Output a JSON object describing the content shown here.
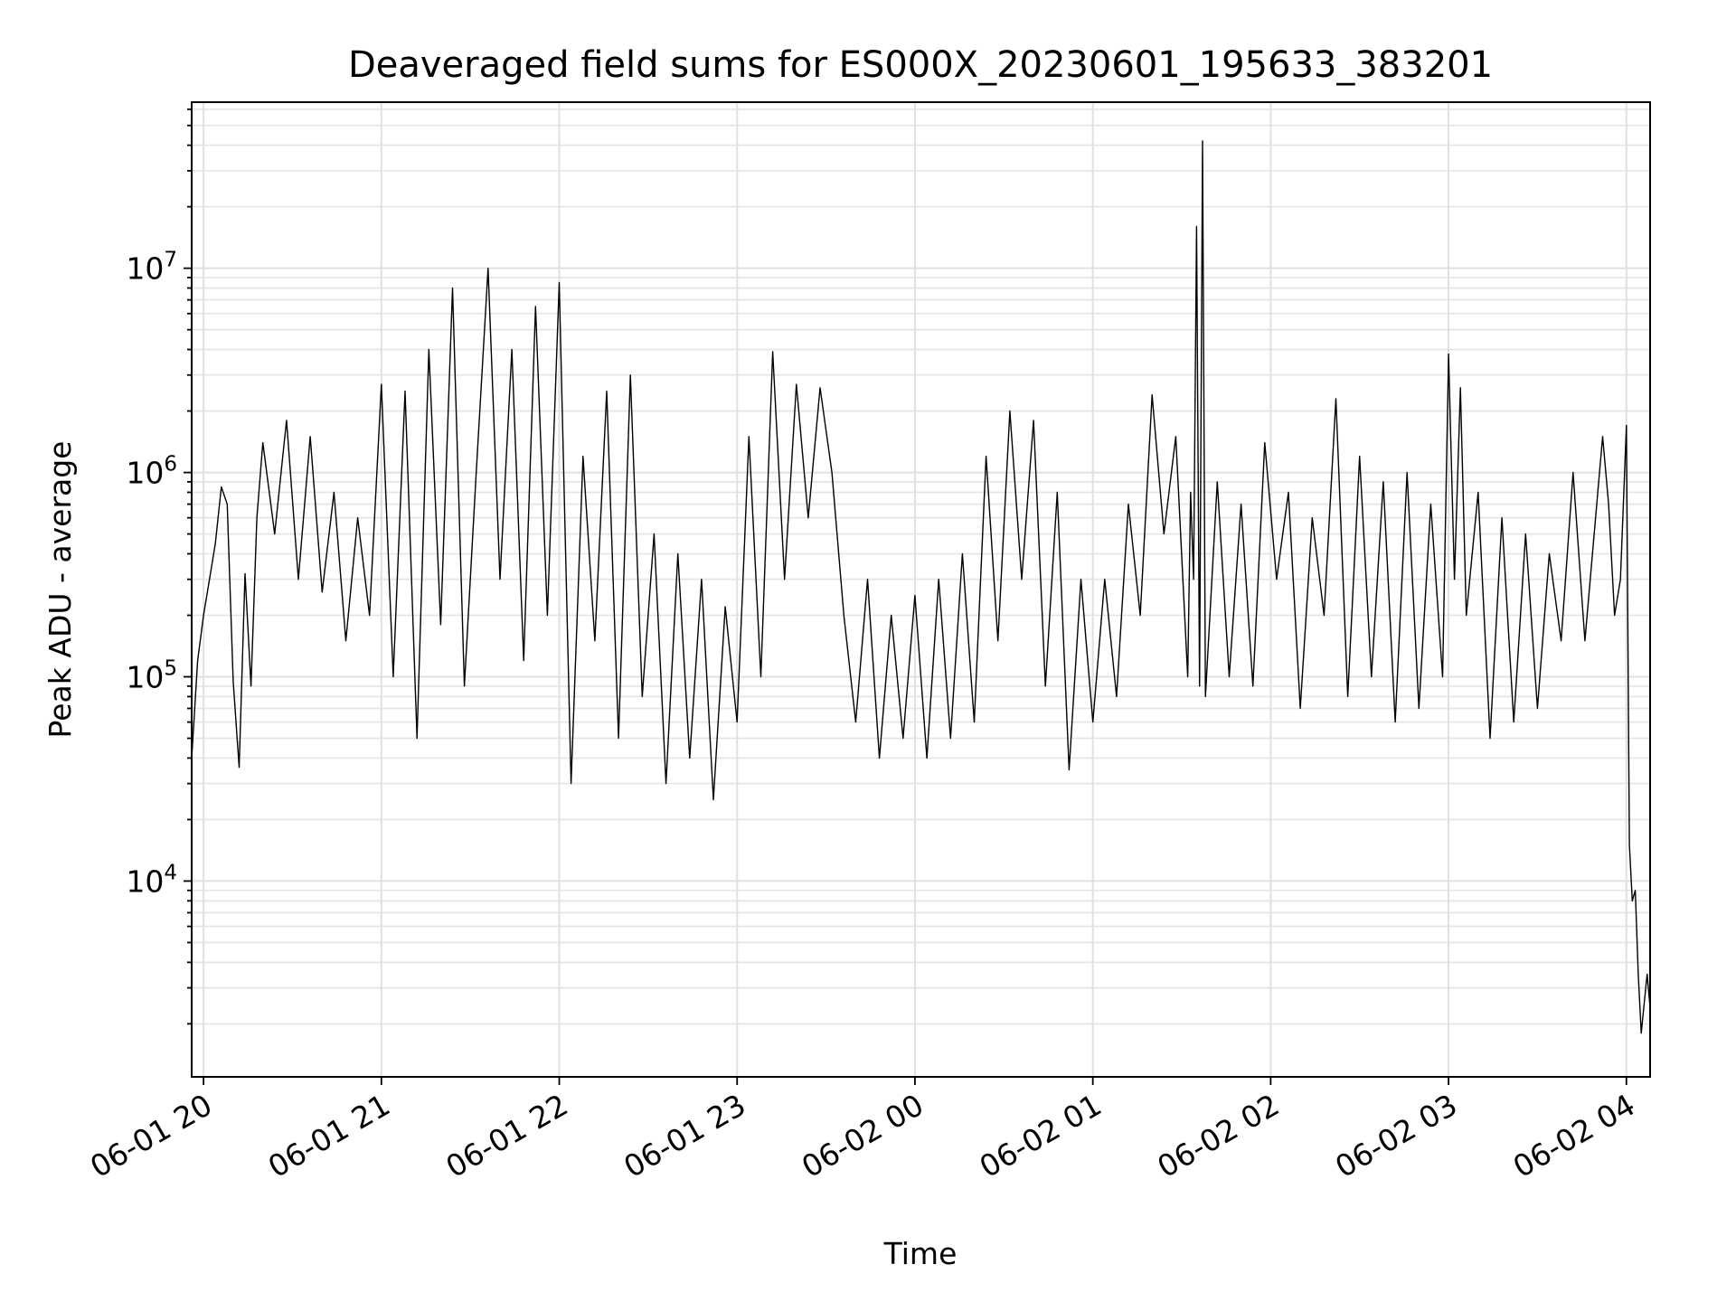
{
  "chart_data": {
    "type": "line",
    "title": "Deaveraged field sums for ES000X_20230601_195633_383201",
    "xlabel": "Time",
    "ylabel": "Peak ADU - average",
    "y_scale": "log",
    "ylim": [
      1100,
      65000000
    ],
    "xlim": [
      "2023-06-01 19:56",
      "2023-06-02 04:08"
    ],
    "grid": true,
    "line_color": "#000000",
    "x_ticks": [
      {
        "t": "2023-06-01 20:00",
        "label": "06-01 20"
      },
      {
        "t": "2023-06-01 21:00",
        "label": "06-01 21"
      },
      {
        "t": "2023-06-01 22:00",
        "label": "06-01 22"
      },
      {
        "t": "2023-06-01 23:00",
        "label": "06-01 23"
      },
      {
        "t": "2023-06-02 00:00",
        "label": "06-02 00"
      },
      {
        "t": "2023-06-02 01:00",
        "label": "06-02 01"
      },
      {
        "t": "2023-06-02 02:00",
        "label": "06-02 02"
      },
      {
        "t": "2023-06-02 03:00",
        "label": "06-02 03"
      },
      {
        "t": "2023-06-02 04:00",
        "label": "06-02 04"
      }
    ],
    "y_ticks": [
      {
        "value": 10000,
        "base": "10",
        "exp": "4"
      },
      {
        "value": 100000,
        "base": "10",
        "exp": "5"
      },
      {
        "value": 1000000,
        "base": "10",
        "exp": "6"
      },
      {
        "value": 10000000,
        "base": "10",
        "exp": "7"
      }
    ],
    "series": [
      {
        "x": [
          "2023-06-01 19:56",
          "2023-06-01 19:58",
          "2023-06-01 20:00",
          "2023-06-01 20:02",
          "2023-06-01 20:04",
          "2023-06-01 20:06",
          "2023-06-01 20:08",
          "2023-06-01 20:10",
          "2023-06-01 20:12",
          "2023-06-01 20:14",
          "2023-06-01 20:16",
          "2023-06-01 20:18",
          "2023-06-01 20:20",
          "2023-06-01 20:24",
          "2023-06-01 20:28",
          "2023-06-01 20:32",
          "2023-06-01 20:36",
          "2023-06-01 20:40",
          "2023-06-01 20:44",
          "2023-06-01 20:48",
          "2023-06-01 20:52",
          "2023-06-01 20:56",
          "2023-06-01 21:00",
          "2023-06-01 21:04",
          "2023-06-01 21:08",
          "2023-06-01 21:12",
          "2023-06-01 21:16",
          "2023-06-01 21:20",
          "2023-06-01 21:24",
          "2023-06-01 21:28",
          "2023-06-01 21:32",
          "2023-06-01 21:36",
          "2023-06-01 21:40",
          "2023-06-01 21:44",
          "2023-06-01 21:48",
          "2023-06-01 21:52",
          "2023-06-01 21:56",
          "2023-06-01 22:00",
          "2023-06-01 22:04",
          "2023-06-01 22:08",
          "2023-06-01 22:12",
          "2023-06-01 22:16",
          "2023-06-01 22:20",
          "2023-06-01 22:24",
          "2023-06-01 22:28",
          "2023-06-01 22:32",
          "2023-06-01 22:36",
          "2023-06-01 22:40",
          "2023-06-01 22:44",
          "2023-06-01 22:48",
          "2023-06-01 22:52",
          "2023-06-01 22:56",
          "2023-06-01 23:00",
          "2023-06-01 23:04",
          "2023-06-01 23:08",
          "2023-06-01 23:12",
          "2023-06-01 23:16",
          "2023-06-01 23:20",
          "2023-06-01 23:24",
          "2023-06-01 23:28",
          "2023-06-01 23:32",
          "2023-06-01 23:36",
          "2023-06-01 23:40",
          "2023-06-01 23:44",
          "2023-06-01 23:48",
          "2023-06-01 23:52",
          "2023-06-01 23:56",
          "2023-06-02 00:00",
          "2023-06-02 00:04",
          "2023-06-02 00:08",
          "2023-06-02 00:12",
          "2023-06-02 00:16",
          "2023-06-02 00:20",
          "2023-06-02 00:24",
          "2023-06-02 00:28",
          "2023-06-02 00:32",
          "2023-06-02 00:36",
          "2023-06-02 00:40",
          "2023-06-02 00:44",
          "2023-06-02 00:48",
          "2023-06-02 00:52",
          "2023-06-02 00:56",
          "2023-06-02 01:00",
          "2023-06-02 01:04",
          "2023-06-02 01:08",
          "2023-06-02 01:12",
          "2023-06-02 01:16",
          "2023-06-02 01:20",
          "2023-06-02 01:24",
          "2023-06-02 01:28",
          "2023-06-02 01:32",
          "2023-06-02 01:33",
          "2023-06-02 01:34",
          "2023-06-02 01:35",
          "2023-06-02 01:36",
          "2023-06-02 01:37",
          "2023-06-02 01:38",
          "2023-06-02 01:42",
          "2023-06-02 01:46",
          "2023-06-02 01:50",
          "2023-06-02 01:54",
          "2023-06-02 01:58",
          "2023-06-02 02:02",
          "2023-06-02 02:06",
          "2023-06-02 02:10",
          "2023-06-02 02:14",
          "2023-06-02 02:18",
          "2023-06-02 02:22",
          "2023-06-02 02:26",
          "2023-06-02 02:30",
          "2023-06-02 02:34",
          "2023-06-02 02:38",
          "2023-06-02 02:42",
          "2023-06-02 02:46",
          "2023-06-02 02:50",
          "2023-06-02 02:54",
          "2023-06-02 02:58",
          "2023-06-02 03:00",
          "2023-06-02 03:02",
          "2023-06-02 03:04",
          "2023-06-02 03:06",
          "2023-06-02 03:10",
          "2023-06-02 03:14",
          "2023-06-02 03:18",
          "2023-06-02 03:22",
          "2023-06-02 03:26",
          "2023-06-02 03:30",
          "2023-06-02 03:34",
          "2023-06-02 03:38",
          "2023-06-02 03:42",
          "2023-06-02 03:46",
          "2023-06-02 03:50",
          "2023-06-02 03:52",
          "2023-06-02 03:54",
          "2023-06-02 03:56",
          "2023-06-02 03:58",
          "2023-06-02 04:00",
          "2023-06-02 04:01",
          "2023-06-02 04:02",
          "2023-06-02 04:03",
          "2023-06-02 04:04",
          "2023-06-02 04:05",
          "2023-06-02 04:06",
          "2023-06-02 04:07",
          "2023-06-02 04:08"
        ],
        "y": [
          40000,
          120000,
          200000,
          300000,
          450000,
          850000,
          700000,
          95000,
          36000,
          320000,
          90000,
          600000,
          1400000,
          500000,
          1800000,
          300000,
          1500000,
          260000,
          800000,
          150000,
          600000,
          200000,
          2700000,
          100000,
          2500000,
          50000,
          4000000,
          180000,
          8000000,
          90000,
          1000000,
          10000000,
          300000,
          4000000,
          120000,
          6500000,
          200000,
          8500000,
          30000,
          1200000,
          150000,
          2500000,
          50000,
          3000000,
          80000,
          500000,
          30000,
          400000,
          40000,
          300000,
          25000,
          220000,
          60000,
          1500000,
          100000,
          3900000,
          300000,
          2700000,
          600000,
          2600000,
          1000000,
          200000,
          60000,
          300000,
          40000,
          200000,
          50000,
          250000,
          40000,
          300000,
          50000,
          400000,
          60000,
          1200000,
          150000,
          2000000,
          300000,
          1800000,
          90000,
          800000,
          35000,
          300000,
          60000,
          300000,
          80000,
          700000,
          200000,
          2400000,
          500000,
          1500000,
          100000,
          800000,
          300000,
          16000000,
          90000,
          42000000,
          80000,
          900000,
          100000,
          700000,
          90000,
          1400000,
          300000,
          800000,
          70000,
          600000,
          200000,
          2300000,
          80000,
          1200000,
          100000,
          900000,
          60000,
          1000000,
          70000,
          700000,
          100000,
          3800000,
          300000,
          2600000,
          200000,
          800000,
          50000,
          600000,
          60000,
          500000,
          70000,
          400000,
          150000,
          1000000,
          150000,
          700000,
          1500000,
          700000,
          200000,
          300000,
          1700000,
          15000,
          8000,
          9000,
          3500,
          1800,
          2500,
          3500,
          2400
        ]
      }
    ]
  }
}
